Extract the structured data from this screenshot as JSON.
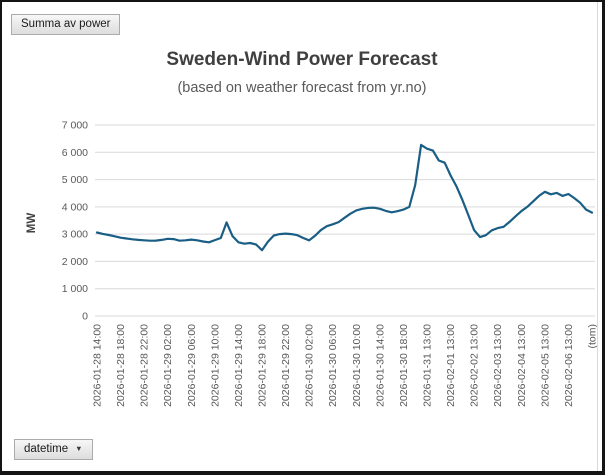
{
  "pivot_controls": {
    "value_field_button": "Summa av power",
    "axis_field_button": "datetime",
    "dropdown_arrow": "▼"
  },
  "chart_data": {
    "type": "line",
    "title": "Sweden-Wind Power Forecast",
    "subtitle": "(based on weather forecast from yr.no)",
    "ylabel": "MW",
    "xlabel": "",
    "ylim": [
      0,
      7000
    ],
    "ytick_step": 1000,
    "ytick_labels": [
      "0",
      "1 000",
      "2 000",
      "3 000",
      "4 000",
      "5 000",
      "6 000",
      "7 000"
    ],
    "grid": true,
    "legend_position": "none",
    "x_labels": [
      "2026-01-28 14:00",
      "2026-01-28 18:00",
      "2026-01-28 22:00",
      "2026-01-29 02:00",
      "2026-01-29 06:00",
      "2026-01-29 10:00",
      "2026-01-29 14:00",
      "2026-01-29 18:00",
      "2026-01-29 22:00",
      "2026-01-30 02:00",
      "2026-01-30 06:00",
      "2026-01-30 10:00",
      "2026-01-30 14:00",
      "2026-01-30 18:00",
      "2026-01-31 13:00",
      "2026-02-01 13:00",
      "2026-02-02 13:00",
      "2026-02-03 13:00",
      "2026-02-04 13:00",
      "2026-02-05 13:00",
      "2026-02-06 13:00",
      "(tom)"
    ],
    "label_every_n_points": 4,
    "series": [
      {
        "name": "Summa av power",
        "values": [
          3060,
          3010,
          2970,
          2920,
          2870,
          2840,
          2810,
          2790,
          2775,
          2760,
          2765,
          2790,
          2830,
          2820,
          2760,
          2775,
          2800,
          2775,
          2730,
          2700,
          2780,
          2860,
          3430,
          2930,
          2700,
          2650,
          2675,
          2620,
          2410,
          2720,
          2950,
          3000,
          3020,
          3000,
          2960,
          2860,
          2770,
          2940,
          3150,
          3290,
          3360,
          3440,
          3600,
          3750,
          3870,
          3930,
          3960,
          3970,
          3930,
          3850,
          3800,
          3840,
          3900,
          4000,
          4800,
          6270,
          6130,
          6060,
          5700,
          5620,
          5150,
          4750,
          4250,
          3700,
          3150,
          2890,
          2960,
          3140,
          3220,
          3270,
          3450,
          3650,
          3840,
          4000,
          4200,
          4400,
          4550,
          4460,
          4510,
          4400,
          4470,
          4320,
          4150,
          3900,
          3790
        ]
      }
    ],
    "colors": {
      "line": "#1A5E85",
      "grid": "#D9D9D9",
      "title_text": "#3F3F3F",
      "subtitle_text": "#595959",
      "tick_text": "#595959",
      "axis_title_text": "#3F3F3F"
    }
  }
}
